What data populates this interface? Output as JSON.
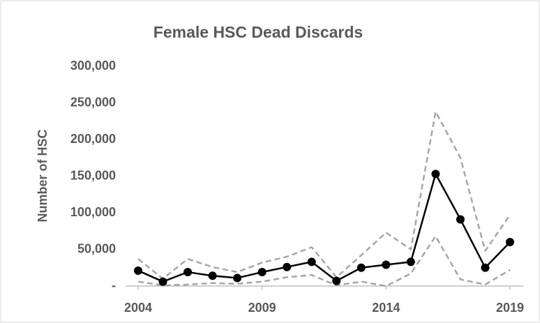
{
  "chart_data": {
    "type": "line",
    "title": "Female HSC Dead Discards",
    "y_label": "Number of HSC",
    "x": [
      2004,
      2005,
      2006,
      2007,
      2008,
      2009,
      2010,
      2011,
      2012,
      2013,
      2014,
      2015,
      2016,
      2017,
      2018,
      2019
    ],
    "series": [
      {
        "color": "#000000",
        "dashed": false,
        "markers": true,
        "values": [
          21000,
          6000,
          19000,
          14000,
          11000,
          19000,
          26000,
          33000,
          7000,
          25000,
          29000,
          33000,
          153000,
          91000,
          25000,
          60000
        ]
      },
      {
        "color": "#a6a6a6",
        "dashed": true,
        "markers": false,
        "values": [
          37000,
          10000,
          37000,
          26000,
          19000,
          32000,
          40000,
          53000,
          12000,
          42000,
          73000,
          50000,
          238000,
          175000,
          48000,
          97000
        ]
      },
      {
        "color": "#a6a6a6",
        "dashed": true,
        "markers": false,
        "values": [
          6000,
          1000,
          2000,
          4000,
          3000,
          6000,
          12000,
          15000,
          1000,
          6000,
          0,
          17000,
          68000,
          9000,
          2000,
          22000
        ]
      }
    ],
    "xlim": [
      2004,
      2019
    ],
    "xticks": [
      2004,
      2009,
      2014,
      2019
    ],
    "ylim": [
      0,
      300000
    ],
    "yticks": [
      {
        "value": 0,
        "label": "-"
      },
      {
        "value": 50000,
        "label": "50,000"
      },
      {
        "value": 100000,
        "label": "100,000"
      },
      {
        "value": 150000,
        "label": "150,000"
      },
      {
        "value": 200000,
        "label": "200,000"
      },
      {
        "value": 250000,
        "label": "250,000"
      },
      {
        "value": 300000,
        "label": "300,000"
      }
    ],
    "grid": false
  }
}
